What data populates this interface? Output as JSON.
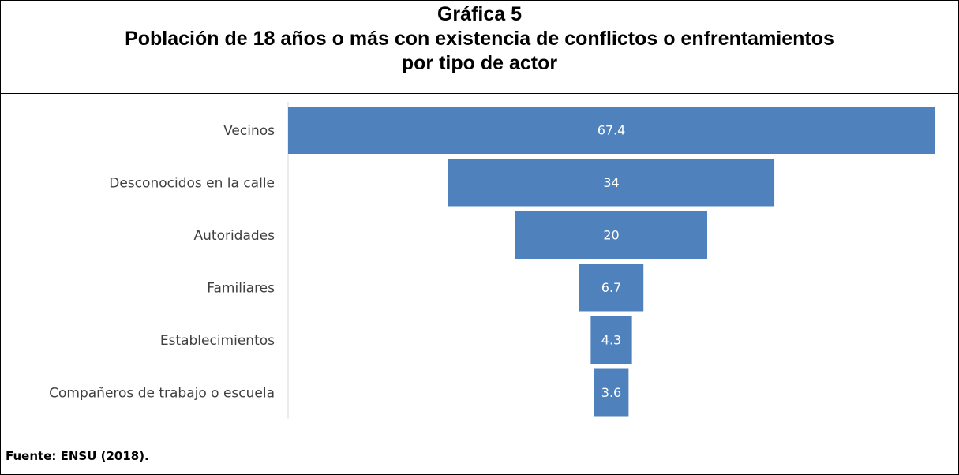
{
  "chart_data": {
    "type": "funnel",
    "title": "Gráfica 5",
    "subtitle": "Población de 18 años o más con existencia de conflictos o enfrentamientos por tipo de actor",
    "categories": [
      "Vecinos",
      "Desconocidos en la calle",
      "Autoridades",
      "Familiares",
      "Establecimientos",
      "Compañeros de trabajo o escuela"
    ],
    "values": [
      67.4,
      34,
      20,
      6.7,
      4.3,
      3.6
    ],
    "color": "#4f81bd",
    "source": "Fuente: ENSU (2018)."
  }
}
